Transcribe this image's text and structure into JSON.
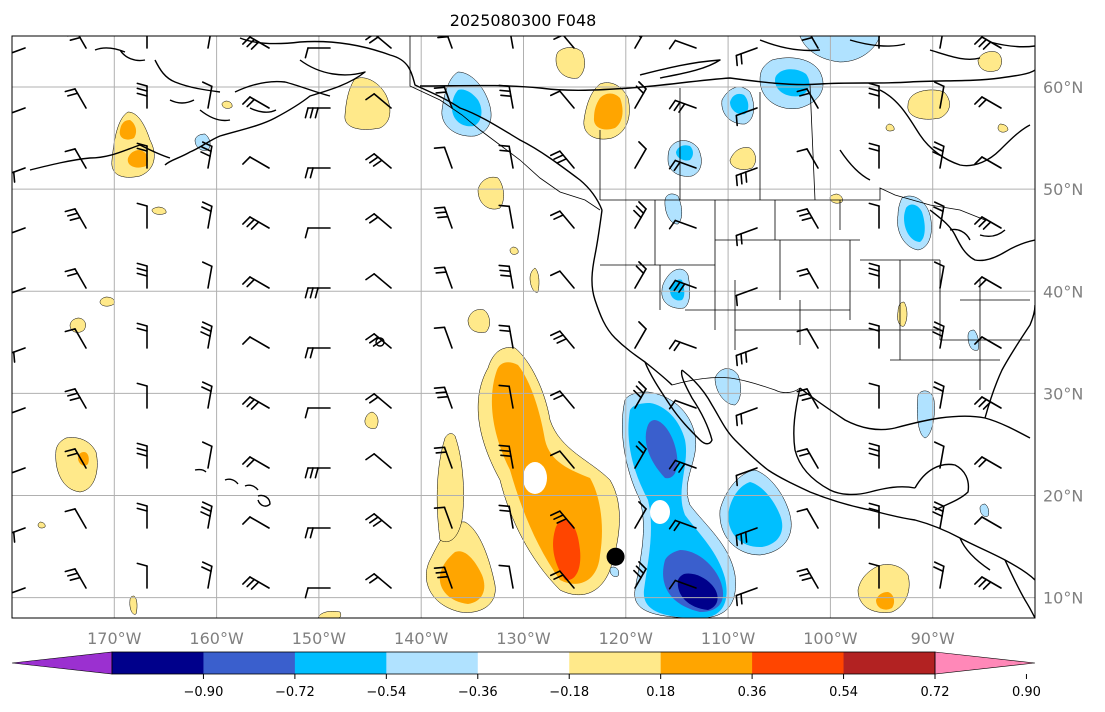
{
  "title": "2025080300 F048",
  "lat_ticks": [
    {
      "value": 10,
      "label": "10°N"
    },
    {
      "value": 20,
      "label": "20°N"
    },
    {
      "value": 30,
      "label": "30°N"
    },
    {
      "value": 40,
      "label": "40°N"
    },
    {
      "value": 50,
      "label": "50°N"
    },
    {
      "value": 60,
      "label": "60°N"
    }
  ],
  "lon_ticks": [
    {
      "value": -170,
      "label": "170°W"
    },
    {
      "value": -160,
      "label": "160°W"
    },
    {
      "value": -150,
      "label": "150°W"
    },
    {
      "value": -140,
      "label": "140°W"
    },
    {
      "value": -130,
      "label": "130°W"
    },
    {
      "value": -120,
      "label": "120°W"
    },
    {
      "value": -110,
      "label": "110°W"
    },
    {
      "value": -100,
      "label": "100°W"
    },
    {
      "value": -90,
      "label": "90°W"
    }
  ],
  "extent": {
    "lon_min": -180,
    "lon_max": -80,
    "lat_min": 8,
    "lat_max": 65
  },
  "colorbar": {
    "levels": [
      -0.9,
      -0.72,
      -0.54,
      -0.36,
      -0.18,
      0.18,
      0.36,
      0.54,
      0.72,
      0.9
    ],
    "tick_labels": [
      "−0.90",
      "−0.72",
      "−0.54",
      "−0.36",
      "−0.18",
      "0.18",
      "0.36",
      "0.54",
      "0.72",
      "0.90"
    ],
    "colors": [
      "#9b30d0",
      "#00008b",
      "#3a5fcd",
      "#00bfff",
      "#b0e2ff",
      "#ffffff",
      "#ffe98a",
      "#ffa500",
      "#ff4500",
      "#b22222",
      "#ff88b8"
    ]
  },
  "marker": {
    "lon": -121,
    "lat": 14
  }
}
